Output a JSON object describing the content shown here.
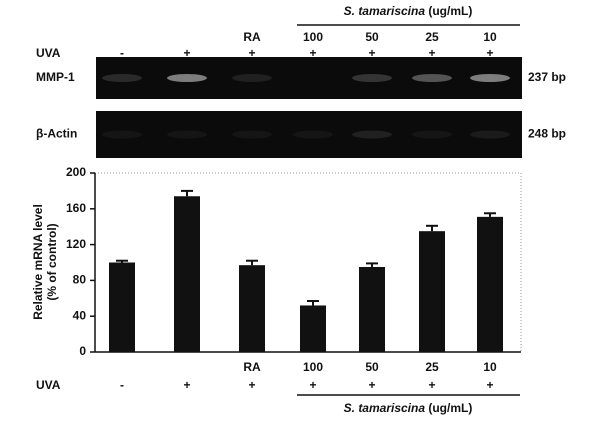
{
  "chart_data": {
    "type": "bar",
    "categories": [
      null,
      null,
      "RA",
      "100",
      "50",
      "25",
      "10"
    ],
    "values": [
      100,
      174,
      97,
      52,
      95,
      135,
      151
    ],
    "errors": [
      2,
      6,
      5,
      5,
      4,
      6,
      4
    ],
    "color": "#111111",
    "y_label": [
      "Relative mRNA level",
      "(% of control)"
    ],
    "ylim": [
      0,
      200
    ],
    "yticks": [
      0,
      40,
      80,
      120,
      160,
      200
    ]
  },
  "treatment": {
    "label": "UVA",
    "values": [
      "-",
      "+",
      "+",
      "+",
      "+",
      "+",
      "+"
    ]
  },
  "group": {
    "name": "S. tamariscina",
    "unit": "(ug/mL)"
  },
  "gel": {
    "rows": [
      {
        "name": "MMP-1",
        "size": "237 bp"
      },
      {
        "name": "β-Actin",
        "size": "248 bp"
      }
    ]
  }
}
